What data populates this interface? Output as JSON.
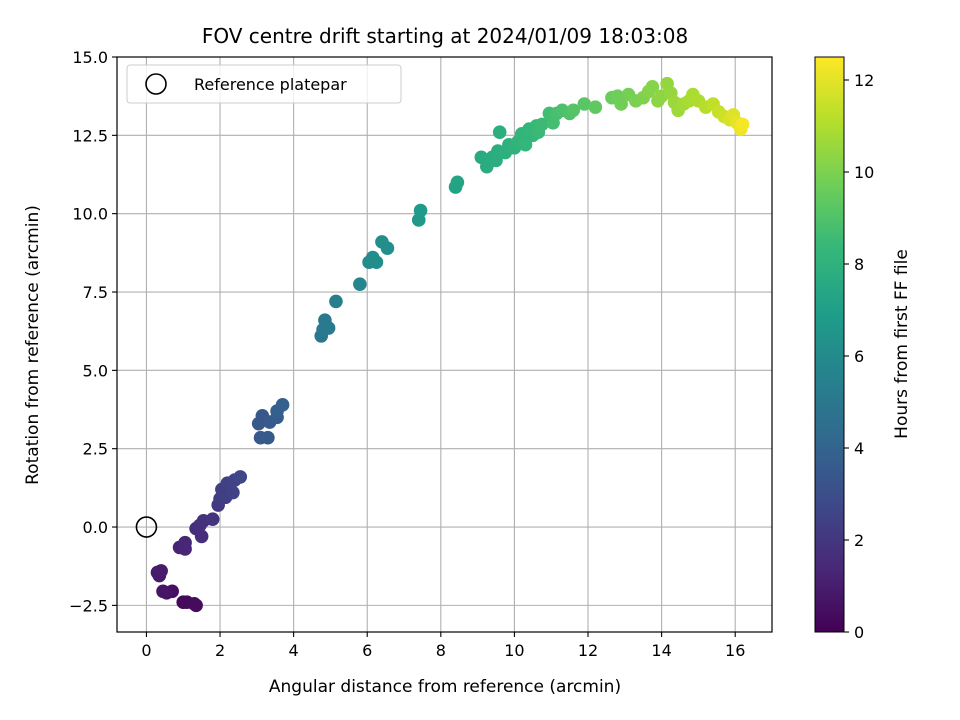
{
  "chart_data": {
    "type": "scatter",
    "title": "FOV centre drift starting at 2024/01/09 18:03:08",
    "xlabel": "Angular distance from reference (arcmin)",
    "ylabel": "Rotation from reference (arcmin)",
    "colorbar_label": "Hours from first FF file",
    "colormap": "viridis",
    "colormap_stops": [
      "#440154",
      "#482878",
      "#3e4989",
      "#31688e",
      "#26828e",
      "#1f9e89",
      "#35b779",
      "#6ece58",
      "#b5de2b",
      "#fde725"
    ],
    "xlim": [
      -0.8,
      17.0
    ],
    "ylim": [
      -3.35,
      15.0
    ],
    "clim": [
      0,
      12.5
    ],
    "x_ticks": [
      0,
      2,
      4,
      6,
      8,
      10,
      12,
      14,
      16
    ],
    "x_tick_labels": [
      "0",
      "2",
      "4",
      "6",
      "8",
      "10",
      "12",
      "14",
      "16"
    ],
    "y_ticks": [
      -2.5,
      0.0,
      2.5,
      5.0,
      7.5,
      10.0,
      12.5,
      15.0
    ],
    "y_tick_labels": [
      "−2.5",
      "0.0",
      "2.5",
      "5.0",
      "7.5",
      "10.0",
      "12.5",
      "15.0"
    ],
    "c_ticks": [
      0,
      2,
      4,
      6,
      8,
      10,
      12
    ],
    "c_tick_labels": [
      "0",
      "2",
      "4",
      "6",
      "8",
      "10",
      "12"
    ],
    "grid": true,
    "legend": {
      "position": "top-left",
      "entries": [
        {
          "label": "Reference platepar",
          "marker": "open-circle"
        }
      ]
    },
    "reference_point": {
      "x": 0.0,
      "y": 0.0
    },
    "points": [
      {
        "x": 1.0,
        "y": -2.4,
        "c": 0.2
      },
      {
        "x": 1.1,
        "y": -2.4,
        "c": 0.3
      },
      {
        "x": 1.3,
        "y": -2.45,
        "c": 0.35
      },
      {
        "x": 1.35,
        "y": -2.5,
        "c": 0.4
      },
      {
        "x": 0.7,
        "y": -2.05,
        "c": 0.55
      },
      {
        "x": 0.55,
        "y": -2.1,
        "c": 0.6
      },
      {
        "x": 0.45,
        "y": -2.05,
        "c": 0.7
      },
      {
        "x": 0.35,
        "y": -1.55,
        "c": 0.85
      },
      {
        "x": 0.3,
        "y": -1.45,
        "c": 0.9
      },
      {
        "x": 0.4,
        "y": -1.4,
        "c": 0.95
      },
      {
        "x": 0.9,
        "y": -0.65,
        "c": 1.2
      },
      {
        "x": 1.05,
        "y": -0.7,
        "c": 1.3
      },
      {
        "x": 1.05,
        "y": -0.5,
        "c": 1.35
      },
      {
        "x": 1.35,
        "y": -0.05,
        "c": 1.6
      },
      {
        "x": 1.5,
        "y": -0.3,
        "c": 1.65
      },
      {
        "x": 1.45,
        "y": 0.05,
        "c": 1.7
      },
      {
        "x": 1.55,
        "y": 0.2,
        "c": 1.75
      },
      {
        "x": 1.8,
        "y": 0.25,
        "c": 1.9
      },
      {
        "x": 1.95,
        "y": 0.7,
        "c": 2.1
      },
      {
        "x": 2.0,
        "y": 0.9,
        "c": 2.2
      },
      {
        "x": 2.05,
        "y": 1.2,
        "c": 2.3
      },
      {
        "x": 2.15,
        "y": 0.95,
        "c": 2.35
      },
      {
        "x": 2.2,
        "y": 1.4,
        "c": 2.45
      },
      {
        "x": 2.35,
        "y": 1.1,
        "c": 2.5
      },
      {
        "x": 2.4,
        "y": 1.5,
        "c": 2.55
      },
      {
        "x": 2.55,
        "y": 1.6,
        "c": 2.7
      },
      {
        "x": 3.05,
        "y": 3.3,
        "c": 3.4
      },
      {
        "x": 3.15,
        "y": 3.55,
        "c": 3.45
      },
      {
        "x": 3.1,
        "y": 2.85,
        "c": 3.5
      },
      {
        "x": 3.3,
        "y": 2.85,
        "c": 3.55
      },
      {
        "x": 3.35,
        "y": 3.35,
        "c": 3.6
      },
      {
        "x": 3.55,
        "y": 3.5,
        "c": 3.7
      },
      {
        "x": 3.55,
        "y": 3.7,
        "c": 3.75
      },
      {
        "x": 3.7,
        "y": 3.9,
        "c": 3.8
      },
      {
        "x": 4.75,
        "y": 6.1,
        "c": 5.0
      },
      {
        "x": 4.8,
        "y": 6.3,
        "c": 5.05
      },
      {
        "x": 4.85,
        "y": 6.6,
        "c": 5.1
      },
      {
        "x": 4.95,
        "y": 6.35,
        "c": 5.15
      },
      {
        "x": 5.15,
        "y": 7.2,
        "c": 5.4
      },
      {
        "x": 5.8,
        "y": 7.75,
        "c": 5.8
      },
      {
        "x": 6.05,
        "y": 8.45,
        "c": 6.0
      },
      {
        "x": 6.15,
        "y": 8.6,
        "c": 6.05
      },
      {
        "x": 6.25,
        "y": 8.45,
        "c": 6.1
      },
      {
        "x": 6.4,
        "y": 9.1,
        "c": 6.15
      },
      {
        "x": 6.55,
        "y": 8.9,
        "c": 6.2
      },
      {
        "x": 7.4,
        "y": 9.8,
        "c": 6.7
      },
      {
        "x": 7.45,
        "y": 10.1,
        "c": 6.75
      },
      {
        "x": 8.4,
        "y": 10.85,
        "c": 7.2
      },
      {
        "x": 8.45,
        "y": 11.0,
        "c": 7.25
      },
      {
        "x": 9.1,
        "y": 11.8,
        "c": 7.6
      },
      {
        "x": 9.25,
        "y": 11.5,
        "c": 7.65
      },
      {
        "x": 9.4,
        "y": 11.8,
        "c": 7.7
      },
      {
        "x": 9.5,
        "y": 11.7,
        "c": 7.75
      },
      {
        "x": 9.55,
        "y": 12.0,
        "c": 7.8
      },
      {
        "x": 9.6,
        "y": 12.6,
        "c": 7.85
      },
      {
        "x": 9.75,
        "y": 11.95,
        "c": 7.9
      },
      {
        "x": 9.85,
        "y": 12.2,
        "c": 7.95
      },
      {
        "x": 10.0,
        "y": 12.1,
        "c": 8.05
      },
      {
        "x": 10.1,
        "y": 12.3,
        "c": 8.1
      },
      {
        "x": 10.2,
        "y": 12.55,
        "c": 8.15
      },
      {
        "x": 10.3,
        "y": 12.2,
        "c": 8.2
      },
      {
        "x": 10.4,
        "y": 12.7,
        "c": 8.25
      },
      {
        "x": 10.5,
        "y": 12.5,
        "c": 8.3
      },
      {
        "x": 10.6,
        "y": 12.8,
        "c": 8.4
      },
      {
        "x": 10.65,
        "y": 12.6,
        "c": 8.45
      },
      {
        "x": 10.75,
        "y": 12.85,
        "c": 8.5
      },
      {
        "x": 10.95,
        "y": 13.2,
        "c": 8.65
      },
      {
        "x": 11.05,
        "y": 12.9,
        "c": 8.7
      },
      {
        "x": 11.15,
        "y": 13.2,
        "c": 8.8
      },
      {
        "x": 11.3,
        "y": 13.3,
        "c": 8.9
      },
      {
        "x": 11.5,
        "y": 13.2,
        "c": 9.0
      },
      {
        "x": 11.6,
        "y": 13.3,
        "c": 9.1
      },
      {
        "x": 11.9,
        "y": 13.5,
        "c": 9.2
      },
      {
        "x": 12.2,
        "y": 13.4,
        "c": 9.35
      },
      {
        "x": 12.65,
        "y": 13.7,
        "c": 9.6
      },
      {
        "x": 12.8,
        "y": 13.75,
        "c": 9.7
      },
      {
        "x": 12.9,
        "y": 13.5,
        "c": 9.75
      },
      {
        "x": 13.1,
        "y": 13.8,
        "c": 9.85
      },
      {
        "x": 13.3,
        "y": 13.6,
        "c": 9.95
      },
      {
        "x": 13.5,
        "y": 13.7,
        "c": 10.05
      },
      {
        "x": 13.65,
        "y": 13.9,
        "c": 10.15
      },
      {
        "x": 13.75,
        "y": 14.05,
        "c": 10.2
      },
      {
        "x": 13.9,
        "y": 13.6,
        "c": 10.3
      },
      {
        "x": 14.0,
        "y": 13.75,
        "c": 10.35
      },
      {
        "x": 14.15,
        "y": 14.15,
        "c": 10.45
      },
      {
        "x": 14.25,
        "y": 13.85,
        "c": 10.5
      },
      {
        "x": 14.35,
        "y": 13.55,
        "c": 10.6
      },
      {
        "x": 14.45,
        "y": 13.3,
        "c": 10.65
      },
      {
        "x": 14.6,
        "y": 13.5,
        "c": 10.75
      },
      {
        "x": 14.75,
        "y": 13.6,
        "c": 10.85
      },
      {
        "x": 14.85,
        "y": 13.8,
        "c": 10.9
      },
      {
        "x": 15.0,
        "y": 13.6,
        "c": 11.0
      },
      {
        "x": 15.2,
        "y": 13.4,
        "c": 11.15
      },
      {
        "x": 15.4,
        "y": 13.5,
        "c": 11.3
      },
      {
        "x": 15.55,
        "y": 13.25,
        "c": 11.45
      },
      {
        "x": 15.7,
        "y": 13.1,
        "c": 11.6
      },
      {
        "x": 15.85,
        "y": 13.0,
        "c": 11.75
      },
      {
        "x": 15.95,
        "y": 13.15,
        "c": 11.9
      },
      {
        "x": 16.05,
        "y": 12.9,
        "c": 12.05
      },
      {
        "x": 16.15,
        "y": 12.7,
        "c": 12.2
      },
      {
        "x": 16.2,
        "y": 12.85,
        "c": 12.35
      }
    ]
  }
}
